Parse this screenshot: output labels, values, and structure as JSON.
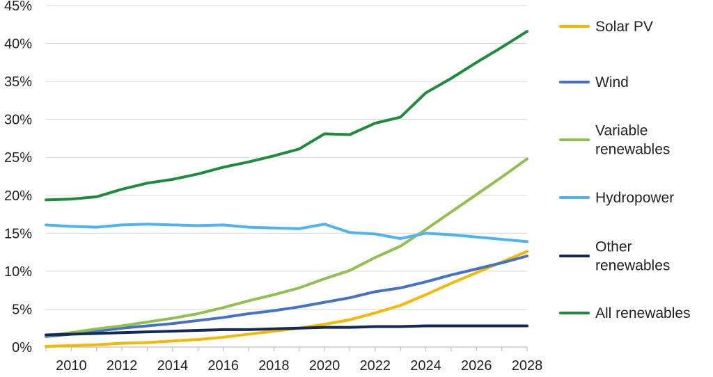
{
  "chart_data": {
    "type": "line",
    "title": "",
    "xlabel": "",
    "ylabel": "",
    "x": [
      2009,
      2010,
      2011,
      2012,
      2013,
      2014,
      2015,
      2016,
      2017,
      2018,
      2019,
      2020,
      2021,
      2022,
      2023,
      2024,
      2025,
      2026,
      2027,
      2028
    ],
    "x_tick_values": [
      2010,
      2012,
      2014,
      2016,
      2018,
      2020,
      2022,
      2024,
      2026,
      2028
    ],
    "x_tick_labels": [
      "2010",
      "2012",
      "2014",
      "2016",
      "2018",
      "2020",
      "2022",
      "2024",
      "2026",
      "2028"
    ],
    "xlim": [
      2009,
      2028
    ],
    "ylim": [
      0,
      45
    ],
    "y_tick_values": [
      0,
      5,
      10,
      15,
      20,
      25,
      30,
      35,
      40,
      45
    ],
    "y_tick_labels": [
      "0%",
      "5%",
      "10%",
      "15%",
      "20%",
      "25%",
      "30%",
      "35%",
      "40%",
      "45%"
    ],
    "grid": "horizontal",
    "legend_position": "right",
    "series": [
      {
        "name": "Solar PV",
        "color": "#f5b800",
        "values": [
          0.1,
          0.2,
          0.3,
          0.5,
          0.6,
          0.8,
          1.0,
          1.3,
          1.7,
          2.1,
          2.5,
          3.0,
          3.6,
          4.5,
          5.5,
          6.9,
          8.4,
          9.8,
          11.2,
          12.6
        ]
      },
      {
        "name": "Wind",
        "color": "#4472c4",
        "values": [
          1.4,
          1.7,
          2.1,
          2.5,
          2.8,
          3.1,
          3.5,
          3.9,
          4.4,
          4.8,
          5.3,
          5.9,
          6.5,
          7.3,
          7.8,
          8.6,
          9.5,
          10.3,
          11.1,
          12.0
        ]
      },
      {
        "name": "Variable renewables",
        "color": "#92c050",
        "values": [
          1.5,
          1.9,
          2.4,
          2.8,
          3.3,
          3.8,
          4.4,
          5.2,
          6.1,
          6.9,
          7.8,
          9.0,
          10.1,
          11.8,
          13.3,
          15.5,
          17.8,
          20.1,
          22.4,
          24.8
        ]
      },
      {
        "name": "Hydropower",
        "color": "#4fb3ef",
        "values": [
          16.1,
          15.9,
          15.8,
          16.1,
          16.2,
          16.1,
          16.0,
          16.1,
          15.8,
          15.7,
          15.6,
          16.2,
          15.1,
          14.9,
          14.3,
          15.0,
          14.8,
          14.5,
          14.2,
          13.9
        ]
      },
      {
        "name": "Other renewables",
        "color": "#14285a",
        "values": [
          1.6,
          1.7,
          1.8,
          1.9,
          2.0,
          2.1,
          2.2,
          2.3,
          2.3,
          2.4,
          2.5,
          2.6,
          2.6,
          2.7,
          2.7,
          2.8,
          2.8,
          2.8,
          2.8,
          2.8
        ]
      },
      {
        "name": "All renewables",
        "color": "#1e8c3c",
        "values": [
          19.4,
          19.5,
          19.8,
          20.8,
          21.6,
          22.1,
          22.8,
          23.7,
          24.4,
          25.2,
          26.1,
          28.1,
          28.0,
          29.5,
          30.3,
          33.5,
          35.4,
          37.5,
          39.5,
          41.6
        ]
      }
    ],
    "legend": [
      {
        "label_lines": [
          "Solar PV"
        ],
        "color": "#f5b800"
      },
      {
        "label_lines": [
          "Wind"
        ],
        "color": "#4472c4"
      },
      {
        "label_lines": [
          "Variable",
          "renewables"
        ],
        "color": "#92c050"
      },
      {
        "label_lines": [
          "Hydropower"
        ],
        "color": "#4fb3ef"
      },
      {
        "label_lines": [
          "Other",
          "renewables"
        ],
        "color": "#14285a"
      },
      {
        "label_lines": [
          "All renewables"
        ],
        "color": "#1e8c3c"
      }
    ]
  }
}
